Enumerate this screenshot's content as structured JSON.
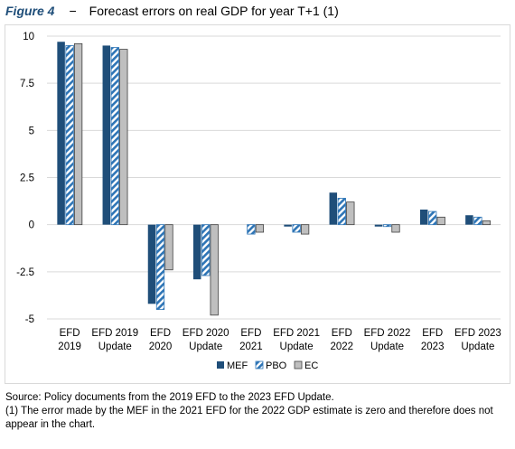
{
  "figure_label": "Figure 4",
  "title_separator": "−",
  "title": "Forecast errors on real GDP for year T+1 (1)",
  "source_note": "Source: Policy documents from the 2019 EFD to the 2023 EFD Update.",
  "footnote": "(1) The error made by the MEF in the 2021 EFD for the 2022 GDP estimate is zero and therefore does not appear in the chart.",
  "colors": {
    "mef": "#1f4e79",
    "pbo": "#2e75b6",
    "ec": "#bfbfbf",
    "grid": "#d9d9d9"
  },
  "chart_data": {
    "type": "bar",
    "categories": [
      [
        "EFD",
        "2019"
      ],
      [
        "EFD 2019",
        "Update"
      ],
      [
        "EFD",
        "2020"
      ],
      [
        "EFD 2020",
        "Update"
      ],
      [
        "EFD",
        "2021"
      ],
      [
        "EFD 2021",
        "Update"
      ],
      [
        "EFD",
        "2022"
      ],
      [
        "EFD 2022",
        "Update"
      ],
      [
        "EFD",
        "2023"
      ],
      [
        "EFD 2023",
        "Update"
      ]
    ],
    "series": [
      {
        "name": "MEF",
        "pattern": "solid",
        "values": [
          9.7,
          9.5,
          -4.2,
          -2.9,
          0.0,
          -0.1,
          1.7,
          -0.1,
          0.8,
          0.5
        ]
      },
      {
        "name": "PBO",
        "pattern": "hatched",
        "values": [
          9.5,
          9.4,
          -4.5,
          -2.7,
          -0.5,
          -0.4,
          1.4,
          -0.1,
          0.7,
          0.4
        ]
      },
      {
        "name": "EC",
        "pattern": "solid",
        "values": [
          9.6,
          9.3,
          -2.4,
          -4.8,
          -0.4,
          -0.5,
          1.2,
          -0.4,
          0.4,
          0.2
        ]
      }
    ],
    "yticks": [
      "10",
      "7.5",
      "5",
      "2.5",
      "0",
      "-2.5",
      "-5"
    ],
    "ylim": [
      -5,
      10
    ],
    "grid": true,
    "legend": "bottom-center"
  }
}
